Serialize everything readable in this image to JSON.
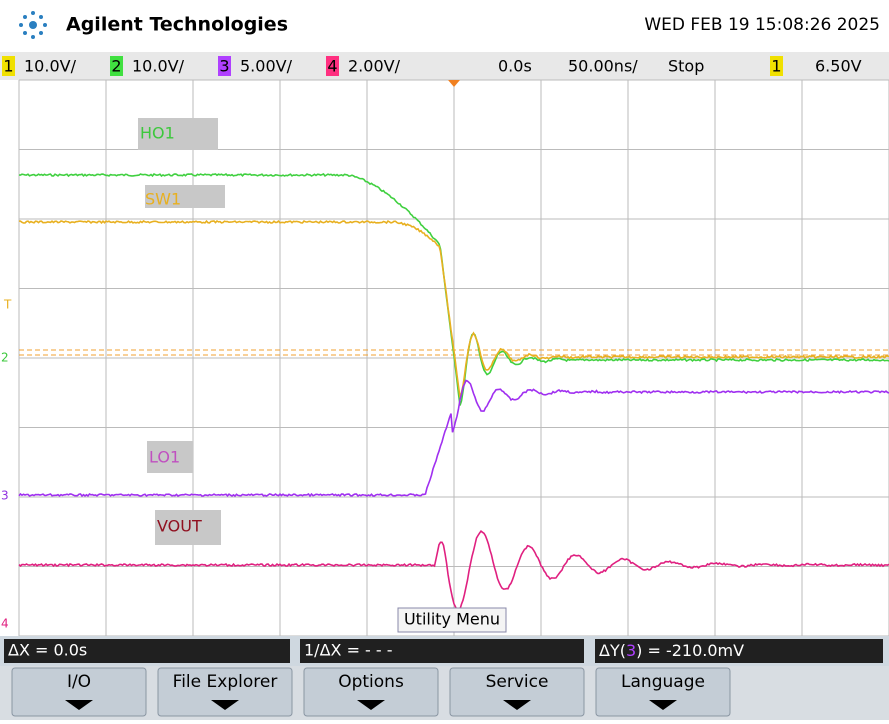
{
  "header": {
    "brand": "Agilent Technologies",
    "datetime": "WED FEB 19 15:08:26 2025"
  },
  "status_bar": {
    "channels": [
      {
        "number": "1",
        "scale": "10.0V/"
      },
      {
        "number": "2",
        "scale": "10.0V/"
      },
      {
        "number": "3",
        "scale": "5.00V/"
      },
      {
        "number": "4",
        "scale": "2.00V/"
      }
    ],
    "time_reference": "0.0s",
    "timebase": "50.00ns/",
    "run_state": "Stop",
    "trigger_source": "1",
    "trigger_level": "6.50V"
  },
  "markers": {
    "trigger": "T",
    "ch2": "2",
    "ch3": "3",
    "ch4": "4"
  },
  "waveform_labels": [
    "HO1",
    "SW1",
    "LO1",
    "VOUT"
  ],
  "popup": "Utility Menu",
  "measurements": {
    "delta_x": "ΔX = 0.0s",
    "inverse_delta_x": "1/ΔX = - - -",
    "delta_y_prefix": "ΔY(",
    "delta_y_channel": "3",
    "delta_y_suffix": ") = -210.0mV"
  },
  "softkeys": [
    "I/O",
    "File Explorer",
    "Options",
    "Service",
    "Language"
  ]
}
